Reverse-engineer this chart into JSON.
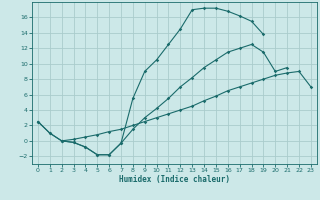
{
  "title": "",
  "xlabel": "Humidex (Indice chaleur)",
  "bg_color": "#cce8e8",
  "grid_color": "#aacccc",
  "line_color": "#1a6b6b",
  "line1_x": [
    0,
    1,
    2,
    3,
    4,
    5,
    6,
    7,
    8,
    9,
    10,
    11,
    12,
    13,
    14,
    15,
    16,
    17,
    18,
    19
  ],
  "line1_y": [
    2.5,
    1.0,
    0.0,
    -0.2,
    -0.8,
    -1.8,
    -1.8,
    -0.3,
    5.5,
    9.0,
    10.5,
    12.5,
    14.5,
    17.0,
    17.2,
    17.2,
    16.8,
    16.2,
    15.5,
    13.8
  ],
  "line2_x": [
    0,
    1,
    2,
    3,
    4,
    5,
    6,
    7,
    8,
    9,
    10,
    11,
    12,
    13,
    14,
    15,
    16,
    17,
    18,
    19,
    20,
    21
  ],
  "line2_y": [
    2.5,
    1.0,
    0.0,
    -0.2,
    -0.8,
    -1.8,
    -1.8,
    -0.3,
    1.5,
    3.0,
    4.2,
    5.5,
    7.0,
    8.2,
    9.5,
    10.5,
    11.5,
    12.0,
    12.5,
    11.5,
    9.0,
    9.5
  ],
  "line3_x": [
    2,
    3,
    4,
    5,
    6,
    7,
    8,
    9,
    10,
    11,
    12,
    13,
    14,
    15,
    16,
    17,
    18,
    19,
    20,
    21,
    22,
    23
  ],
  "line3_y": [
    0.0,
    0.2,
    0.5,
    0.8,
    1.2,
    1.5,
    2.0,
    2.5,
    3.0,
    3.5,
    4.0,
    4.5,
    5.2,
    5.8,
    6.5,
    7.0,
    7.5,
    8.0,
    8.5,
    8.8,
    9.0,
    7.0
  ],
  "xlim": [
    -0.5,
    23.5
  ],
  "ylim": [
    -3,
    18
  ],
  "yticks": [
    -2,
    0,
    2,
    4,
    6,
    8,
    10,
    12,
    14,
    16
  ],
  "xticks": [
    0,
    1,
    2,
    3,
    4,
    5,
    6,
    7,
    8,
    9,
    10,
    11,
    12,
    13,
    14,
    15,
    16,
    17,
    18,
    19,
    20,
    21,
    22,
    23
  ]
}
